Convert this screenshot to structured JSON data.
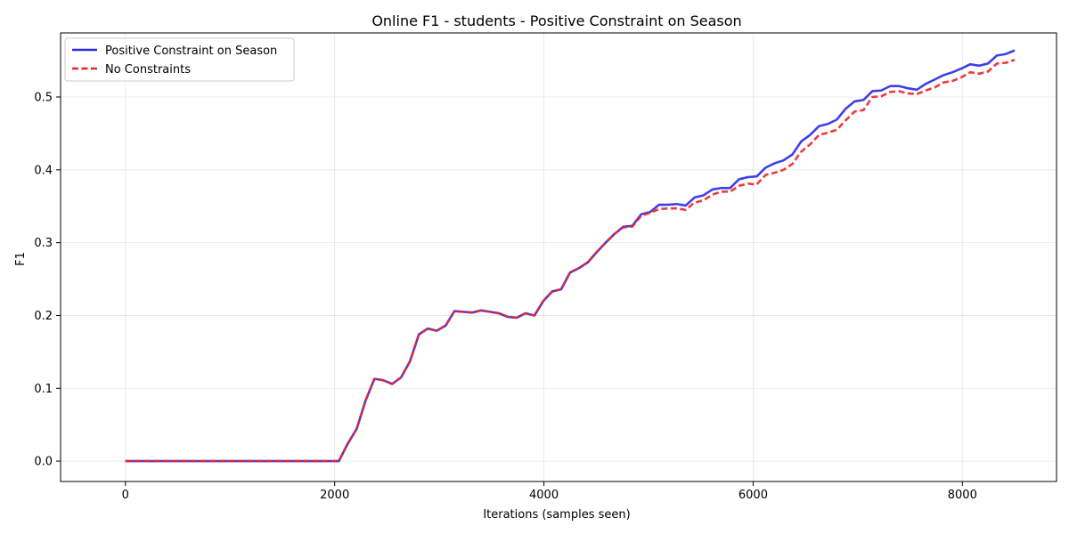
{
  "chart_data": {
    "type": "line",
    "title": "Online F1 - students - Positive Constraint on Season",
    "xlabel": "Iterations (samples seen)",
    "ylabel": "F1",
    "xlim": [
      -620,
      8900
    ],
    "ylim": [
      -0.028,
      0.588
    ],
    "xticks": [
      0,
      2000,
      4000,
      6000,
      8000
    ],
    "yticks": [
      0.0,
      0.1,
      0.2,
      0.3,
      0.4,
      0.5
    ],
    "xtick_labels": [
      "0",
      "2000",
      "4000",
      "6000",
      "8000"
    ],
    "ytick_labels": [
      "0.0",
      "0.1",
      "0.2",
      "0.3",
      "0.4",
      "0.5"
    ],
    "grid": true,
    "legend": {
      "placement": "top-left"
    },
    "x": [
      0,
      85,
      170,
      255,
      340,
      425,
      510,
      595,
      680,
      765,
      850,
      935,
      1020,
      1105,
      1190,
      1275,
      1360,
      1445,
      1530,
      1615,
      1700,
      1785,
      1870,
      1955,
      2040,
      2125,
      2210,
      2295,
      2380,
      2465,
      2550,
      2635,
      2720,
      2805,
      2890,
      2975,
      3060,
      3145,
      3230,
      3315,
      3400,
      3485,
      3570,
      3655,
      3740,
      3825,
      3910,
      3995,
      4080,
      4165,
      4250,
      4335,
      4420,
      4505,
      4590,
      4675,
      4760,
      4845,
      4930,
      5015,
      5100,
      5185,
      5270,
      5355,
      5440,
      5525,
      5610,
      5695,
      5780,
      5865,
      5950,
      6035,
      6120,
      6205,
      6290,
      6375,
      6460,
      6545,
      6630,
      6715,
      6800,
      6885,
      6970,
      7055,
      7140,
      7225,
      7310,
      7395,
      7480,
      7565,
      7650,
      7735,
      7820,
      7905,
      7990,
      8075,
      8160,
      8245,
      8330,
      8415,
      8500
    ],
    "series": [
      {
        "name": "Positive Constraint on Season",
        "color": "#2a2ae6",
        "style": "solid",
        "values": [
          0.0,
          0.0,
          0.0,
          0.0,
          0.0,
          0.0,
          0.0,
          0.0,
          0.0,
          0.0,
          0.0,
          0.0,
          0.0,
          0.0,
          0.0,
          0.0,
          0.0,
          0.0,
          0.0,
          0.0,
          0.0,
          0.0,
          0.0,
          0.0,
          0.0,
          0.024,
          0.044,
          0.083,
          0.113,
          0.111,
          0.106,
          0.115,
          0.137,
          0.174,
          0.182,
          0.179,
          0.186,
          0.206,
          0.205,
          0.204,
          0.207,
          0.205,
          0.203,
          0.198,
          0.197,
          0.203,
          0.2,
          0.22,
          0.233,
          0.236,
          0.259,
          0.265,
          0.273,
          0.287,
          0.3,
          0.312,
          0.322,
          0.323,
          0.339,
          0.342,
          0.352,
          0.352,
          0.353,
          0.351,
          0.362,
          0.365,
          0.373,
          0.375,
          0.375,
          0.387,
          0.39,
          0.391,
          0.403,
          0.409,
          0.413,
          0.421,
          0.439,
          0.448,
          0.46,
          0.463,
          0.469,
          0.484,
          0.494,
          0.496,
          0.508,
          0.509,
          0.515,
          0.515,
          0.512,
          0.51,
          0.518,
          0.524,
          0.53,
          0.534,
          0.539,
          0.545,
          0.543,
          0.546,
          0.557,
          0.559,
          0.564
        ]
      },
      {
        "name": "No Constraints",
        "color": "#e8262e",
        "style": "dashed",
        "values": [
          0.0,
          0.0,
          0.0,
          0.0,
          0.0,
          0.0,
          0.0,
          0.0,
          0.0,
          0.0,
          0.0,
          0.0,
          0.0,
          0.0,
          0.0,
          0.0,
          0.0,
          0.0,
          0.0,
          0.0,
          0.0,
          0.0,
          0.0,
          0.0,
          0.0,
          0.024,
          0.044,
          0.083,
          0.113,
          0.111,
          0.106,
          0.115,
          0.137,
          0.174,
          0.182,
          0.179,
          0.186,
          0.206,
          0.205,
          0.204,
          0.207,
          0.205,
          0.203,
          0.198,
          0.197,
          0.203,
          0.2,
          0.22,
          0.233,
          0.236,
          0.259,
          0.265,
          0.273,
          0.287,
          0.3,
          0.312,
          0.321,
          0.322,
          0.337,
          0.341,
          0.346,
          0.347,
          0.347,
          0.345,
          0.355,
          0.358,
          0.366,
          0.37,
          0.37,
          0.378,
          0.381,
          0.38,
          0.393,
          0.396,
          0.4,
          0.408,
          0.425,
          0.435,
          0.448,
          0.451,
          0.455,
          0.468,
          0.48,
          0.482,
          0.5,
          0.501,
          0.507,
          0.508,
          0.505,
          0.504,
          0.509,
          0.513,
          0.52,
          0.522,
          0.527,
          0.534,
          0.532,
          0.535,
          0.546,
          0.547,
          0.551
        ]
      }
    ]
  }
}
